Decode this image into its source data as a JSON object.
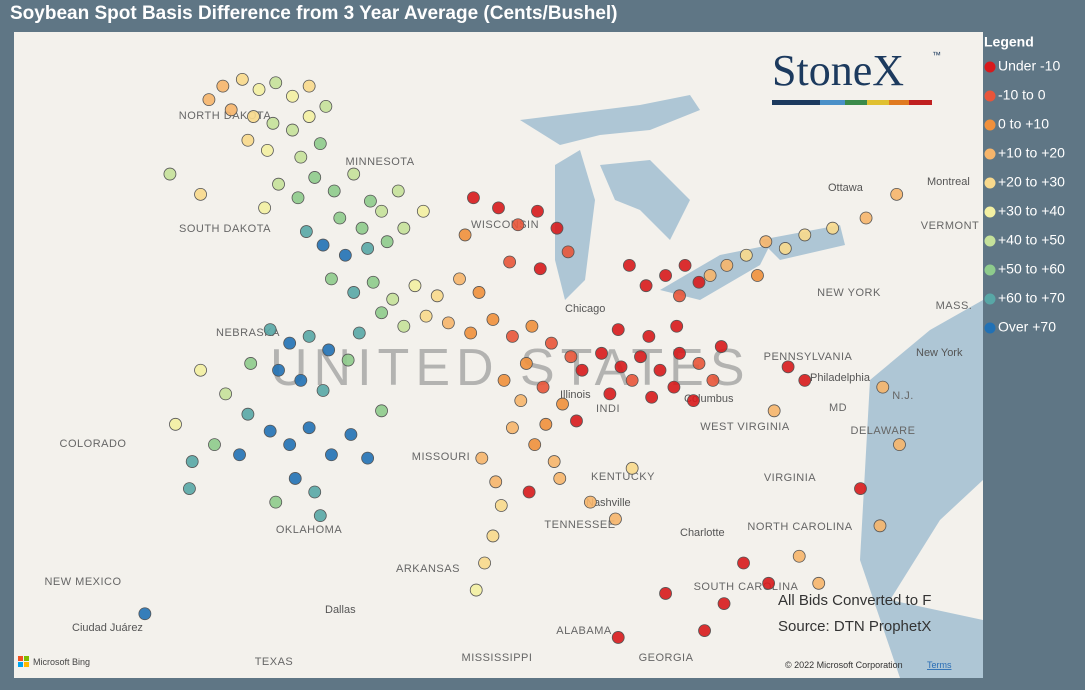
{
  "title": "Soybean Spot Basis Difference from 3 Year Average (Cents/Bushel)",
  "legend": {
    "title": "Legend",
    "items": [
      {
        "label": "Under -10",
        "color": "#d7191c"
      },
      {
        "label": "-10 to 0",
        "color": "#e8553a"
      },
      {
        "label": "0 to +10",
        "color": "#f0903c"
      },
      {
        "label": "+10 to +20",
        "color": "#f6b56b"
      },
      {
        "label": "+20 to +30",
        "color": "#f8d98c"
      },
      {
        "label": "+30 to +40",
        "color": "#f3f0a2"
      },
      {
        "label": "+40 to +50",
        "color": "#c5e19a"
      },
      {
        "label": "+50 to +60",
        "color": "#8ecb8c"
      },
      {
        "label": "+60 to +70",
        "color": "#58a7a6"
      },
      {
        "label": "Over +70",
        "color": "#2171b5"
      }
    ]
  },
  "logo": {
    "name": "StoneX",
    "mark": "™"
  },
  "notes": [
    "All Bids Converted to F",
    "Source: DTN ProphetX"
  ],
  "map": {
    "lon": [
      -108,
      -73.2
    ],
    "lat": [
      50.1,
      31
    ],
    "labels": [
      "NORTH DAKOTA",
      "MINNESOTA",
      "SOUTH DAKOTA",
      "WISCONSIN",
      "NEBRASKA",
      "UNITED STATES",
      "COLORADO",
      "MISSOURI",
      "KENTUCKY",
      "OKLAHOMA",
      "ARKANSAS",
      "TENNESSEE",
      "NEW MEXICO",
      "TEXAS",
      "MISSISSIPPI",
      "ALABAMA",
      "GEORGIA",
      "SOUTH CAROLINA",
      "NORTH CAROLINA",
      "VIRGINIA",
      "WEST VIRGINIA",
      "PENNSYLVANIA",
      "NEW YORK",
      "MD",
      "DELAWARE",
      "N.J.",
      "MASS.",
      "VERMONT",
      "Chicago",
      "Columbus",
      "Nashville",
      "Charlotte",
      "Dallas",
      "Ciudad Juárez",
      "Philadelphia",
      "New York",
      "Ottawa",
      "Montreal",
      "INDI",
      "Illinois"
    ],
    "credits": [
      "Microsoft Bing",
      "© 2022 Microsoft Corporation",
      "Terms"
    ],
    "points": [
      [
        -100.5,
        48.5,
        3
      ],
      [
        -99.8,
        48.7,
        4
      ],
      [
        -99.2,
        48.4,
        5
      ],
      [
        -98.6,
        48.6,
        6
      ],
      [
        -98,
        48.2,
        5
      ],
      [
        -97.4,
        48.5,
        4
      ],
      [
        -100.2,
        47.8,
        3
      ],
      [
        -99.4,
        47.6,
        4
      ],
      [
        -98.7,
        47.4,
        6
      ],
      [
        -98,
        47.2,
        6
      ],
      [
        -97.4,
        47.6,
        5
      ],
      [
        -96.8,
        47.9,
        6
      ],
      [
        -99.6,
        46.9,
        4
      ],
      [
        -98.9,
        46.6,
        5
      ],
      [
        -97.7,
        46.4,
        6
      ],
      [
        -97,
        46.8,
        7
      ],
      [
        -101,
        48.1,
        3
      ],
      [
        -101.3,
        45.3,
        4
      ],
      [
        -98.5,
        45.6,
        6
      ],
      [
        -97.8,
        45.2,
        7
      ],
      [
        -97.2,
        45.8,
        7
      ],
      [
        -96.5,
        45.4,
        7
      ],
      [
        -95.8,
        45.9,
        6
      ],
      [
        -95.2,
        45.1,
        7
      ],
      [
        -96.3,
        44.6,
        7
      ],
      [
        -95.5,
        44.3,
        7
      ],
      [
        -94.8,
        44.8,
        6
      ],
      [
        -94.2,
        45.4,
        6
      ],
      [
        -97.5,
        44.2,
        8
      ],
      [
        -96.9,
        43.8,
        9
      ],
      [
        -96.1,
        43.5,
        9
      ],
      [
        -95.3,
        43.7,
        8
      ],
      [
        -94.6,
        43.9,
        7
      ],
      [
        -94,
        44.3,
        6
      ],
      [
        -93.3,
        44.8,
        5
      ],
      [
        -99,
        44.9,
        5
      ],
      [
        -102.4,
        45.9,
        6
      ],
      [
        -91.5,
        45.2,
        0
      ],
      [
        -90.6,
        44.9,
        0
      ],
      [
        -89.9,
        44.4,
        1
      ],
      [
        -89.2,
        44.8,
        0
      ],
      [
        -88.5,
        44.3,
        0
      ],
      [
        -88.1,
        43.6,
        1
      ],
      [
        -89.1,
        43.1,
        0
      ],
      [
        -90.2,
        43.3,
        1
      ],
      [
        -91.8,
        44.1,
        2
      ],
      [
        -96.6,
        42.8,
        7
      ],
      [
        -95.8,
        42.4,
        8
      ],
      [
        -95.1,
        42.7,
        7
      ],
      [
        -94.4,
        42.2,
        6
      ],
      [
        -93.6,
        42.6,
        5
      ],
      [
        -92.8,
        42.3,
        4
      ],
      [
        -92,
        42.8,
        3
      ],
      [
        -91.3,
        42.4,
        2
      ],
      [
        -93.2,
        41.7,
        4
      ],
      [
        -94,
        41.4,
        6
      ],
      [
        -94.8,
        41.8,
        7
      ],
      [
        -95.6,
        41.2,
        8
      ],
      [
        -92.4,
        41.5,
        3
      ],
      [
        -91.6,
        41.2,
        2
      ],
      [
        -98.8,
        41.3,
        8
      ],
      [
        -98.1,
        40.9,
        9
      ],
      [
        -97.4,
        41.1,
        8
      ],
      [
        -96.7,
        40.7,
        9
      ],
      [
        -96,
        40.4,
        7
      ],
      [
        -99.5,
        40.3,
        7
      ],
      [
        -98.5,
        40.1,
        9
      ],
      [
        -97.7,
        39.8,
        9
      ],
      [
        -96.9,
        39.5,
        8
      ],
      [
        -101.3,
        40.1,
        5
      ],
      [
        -100.4,
        39.4,
        6
      ],
      [
        -99.6,
        38.8,
        8
      ],
      [
        -98.8,
        38.3,
        9
      ],
      [
        -98.1,
        37.9,
        9
      ],
      [
        -97.4,
        38.4,
        9
      ],
      [
        -96.6,
        37.6,
        9
      ],
      [
        -95.9,
        38.2,
        9
      ],
      [
        -95.3,
        37.5,
        9
      ],
      [
        -94.8,
        38.9,
        7
      ],
      [
        -99.9,
        37.6,
        9
      ],
      [
        -100.8,
        37.9,
        7
      ],
      [
        -101.6,
        37.4,
        8
      ],
      [
        -102.2,
        38.5,
        5
      ],
      [
        -97.9,
        36.9,
        9
      ],
      [
        -97.2,
        36.5,
        8
      ],
      [
        -98.6,
        36.2,
        7
      ],
      [
        -97,
        35.8,
        8
      ],
      [
        -103.3,
        32.9,
        9
      ],
      [
        -101.7,
        36.6,
        8
      ],
      [
        -90.8,
        41.6,
        2
      ],
      [
        -90.1,
        41.1,
        1
      ],
      [
        -89.4,
        41.4,
        2
      ],
      [
        -88.7,
        40.9,
        1
      ],
      [
        -88,
        40.5,
        1
      ],
      [
        -89.6,
        40.3,
        2
      ],
      [
        -90.4,
        39.8,
        2
      ],
      [
        -89.8,
        39.2,
        3
      ],
      [
        -89,
        39.6,
        1
      ],
      [
        -88.3,
        39.1,
        2
      ],
      [
        -87.8,
        38.6,
        0
      ],
      [
        -88.9,
        38.5,
        2
      ],
      [
        -90.1,
        38.4,
        3
      ],
      [
        -89.3,
        37.9,
        2
      ],
      [
        -88.6,
        37.4,
        3
      ],
      [
        -87.6,
        40.1,
        0
      ],
      [
        -86.9,
        40.6,
        0
      ],
      [
        -86.2,
        40.2,
        0
      ],
      [
        -85.5,
        40.5,
        0
      ],
      [
        -84.8,
        40.1,
        0
      ],
      [
        -84.1,
        40.6,
        0
      ],
      [
        -83.4,
        40.3,
        1
      ],
      [
        -86.6,
        39.4,
        0
      ],
      [
        -85.8,
        39.8,
        1
      ],
      [
        -85.1,
        39.3,
        0
      ],
      [
        -84.3,
        39.6,
        0
      ],
      [
        -83.6,
        39.2,
        0
      ],
      [
        -82.9,
        39.8,
        1
      ],
      [
        -82.6,
        40.8,
        0
      ],
      [
        -86.3,
        41.3,
        0
      ],
      [
        -85.2,
        41.1,
        0
      ],
      [
        -84.2,
        41.4,
        0
      ],
      [
        -85.3,
        42.6,
        0
      ],
      [
        -84.6,
        42.9,
        0
      ],
      [
        -83.9,
        43.2,
        0
      ],
      [
        -83.4,
        42.7,
        0
      ],
      [
        -84.1,
        42.3,
        1
      ],
      [
        -85.9,
        43.2,
        0
      ],
      [
        -83,
        42.9,
        3
      ],
      [
        -82.4,
        43.2,
        3
      ],
      [
        -81.7,
        43.5,
        4
      ],
      [
        -81,
        43.9,
        3
      ],
      [
        -80.3,
        43.7,
        4
      ],
      [
        -79.6,
        44.1,
        4
      ],
      [
        -78.6,
        44.3,
        4
      ],
      [
        -77.4,
        44.6,
        3
      ],
      [
        -76.3,
        45.3,
        3
      ],
      [
        -81.3,
        42.9,
        2
      ],
      [
        -91.2,
        37.5,
        3
      ],
      [
        -90.7,
        36.8,
        3
      ],
      [
        -90.5,
        36.1,
        4
      ],
      [
        -90.8,
        35.2,
        4
      ],
      [
        -91.1,
        34.4,
        4
      ],
      [
        -91.4,
        33.6,
        5
      ],
      [
        -89.5,
        36.5,
        0
      ],
      [
        -88.4,
        36.9,
        3
      ],
      [
        -87.3,
        36.2,
        3
      ],
      [
        -86.4,
        35.7,
        3
      ],
      [
        -85.8,
        37.2,
        4
      ],
      [
        -80.2,
        40.2,
        0
      ],
      [
        -79.6,
        39.8,
        0
      ],
      [
        -80.7,
        38.9,
        3
      ],
      [
        -76.8,
        39.6,
        3
      ],
      [
        -76.2,
        37.9,
        3
      ],
      [
        -77.6,
        36.6,
        0
      ],
      [
        -76.9,
        35.5,
        3
      ],
      [
        -79.8,
        34.6,
        3
      ],
      [
        -80.9,
        33.8,
        0
      ],
      [
        -81.8,
        34.4,
        0
      ],
      [
        -82.5,
        33.2,
        0
      ],
      [
        -83.2,
        32.4,
        0
      ],
      [
        -84.6,
        33.5,
        0
      ],
      [
        -86.3,
        32.2,
        0
      ],
      [
        -79.1,
        33.8,
        3
      ]
    ]
  }
}
